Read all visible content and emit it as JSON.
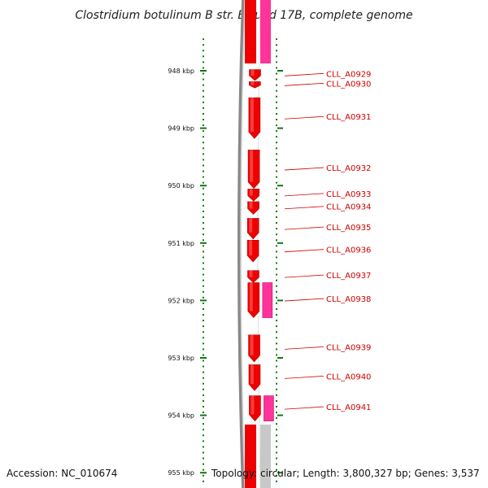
{
  "title": "Clostridium botulinum B str. Eklund 17B, complete genome",
  "accession": "Accession: NC_010674",
  "topology": "Topology: circular; Length: 3,800,327 bp; Genes: 3,537",
  "colors": {
    "forward_cds": "#ee0000",
    "reverse_cds": "#ff3399",
    "backbone": "#888888",
    "label": "#cc0000",
    "tick": "#117711"
  },
  "ticks": [
    {
      "kbp": 948,
      "label": "948 kbp"
    },
    {
      "kbp": 949,
      "label": "949 kbp"
    },
    {
      "kbp": 950,
      "label": "950 kbp"
    },
    {
      "kbp": 951,
      "label": "951 kbp"
    },
    {
      "kbp": 952,
      "label": "952 kbp"
    },
    {
      "kbp": 953,
      "label": "953 kbp"
    },
    {
      "kbp": 954,
      "label": "954 kbp"
    },
    {
      "kbp": 955,
      "label": "955 kbp"
    }
  ],
  "genes": [
    {
      "name": "CLL_A0929",
      "start_kbp": 947.98,
      "end_kbp": 948.17,
      "strand": "+"
    },
    {
      "name": "CLL_A0930",
      "start_kbp": 948.19,
      "end_kbp": 948.3,
      "strand": "+"
    },
    {
      "name": "CLL_A0931",
      "start_kbp": 948.47,
      "end_kbp": 949.18,
      "strand": "+"
    },
    {
      "name": "CLL_A0932",
      "start_kbp": 949.38,
      "end_kbp": 950.05,
      "strand": "+"
    },
    {
      "name": "CLL_A0933",
      "start_kbp": 950.06,
      "end_kbp": 950.27,
      "strand": "+"
    },
    {
      "name": "CLL_A0934",
      "start_kbp": 950.28,
      "end_kbp": 950.5,
      "strand": "+"
    },
    {
      "name": "CLL_A0935",
      "start_kbp": 950.57,
      "end_kbp": 950.93,
      "strand": "+"
    },
    {
      "name": "CLL_A0936",
      "start_kbp": 950.95,
      "end_kbp": 951.33,
      "strand": "+"
    },
    {
      "name": "CLL_A0937",
      "start_kbp": 951.48,
      "end_kbp": 951.69,
      "strand": "+"
    },
    {
      "name": "CLL_A0938",
      "start_kbp": 951.69,
      "end_kbp": 952.3,
      "strand": "+"
    },
    {
      "name": "CLL_A0938",
      "start_kbp": 951.69,
      "end_kbp": 952.3,
      "strand": "-",
      "labelled": false
    },
    {
      "name": "CLL_A0939",
      "start_kbp": 952.6,
      "end_kbp": 953.07,
      "strand": "+"
    },
    {
      "name": "CLL_A0940",
      "start_kbp": 953.12,
      "end_kbp": 953.57,
      "strand": "+"
    },
    {
      "name": "CLL_A0941",
      "start_kbp": 953.66,
      "end_kbp": 954.1,
      "strand": "+"
    },
    {
      "name": "CLL_A0941",
      "start_kbp": 953.66,
      "end_kbp": 954.1,
      "strand": "-",
      "labelled": false
    }
  ]
}
